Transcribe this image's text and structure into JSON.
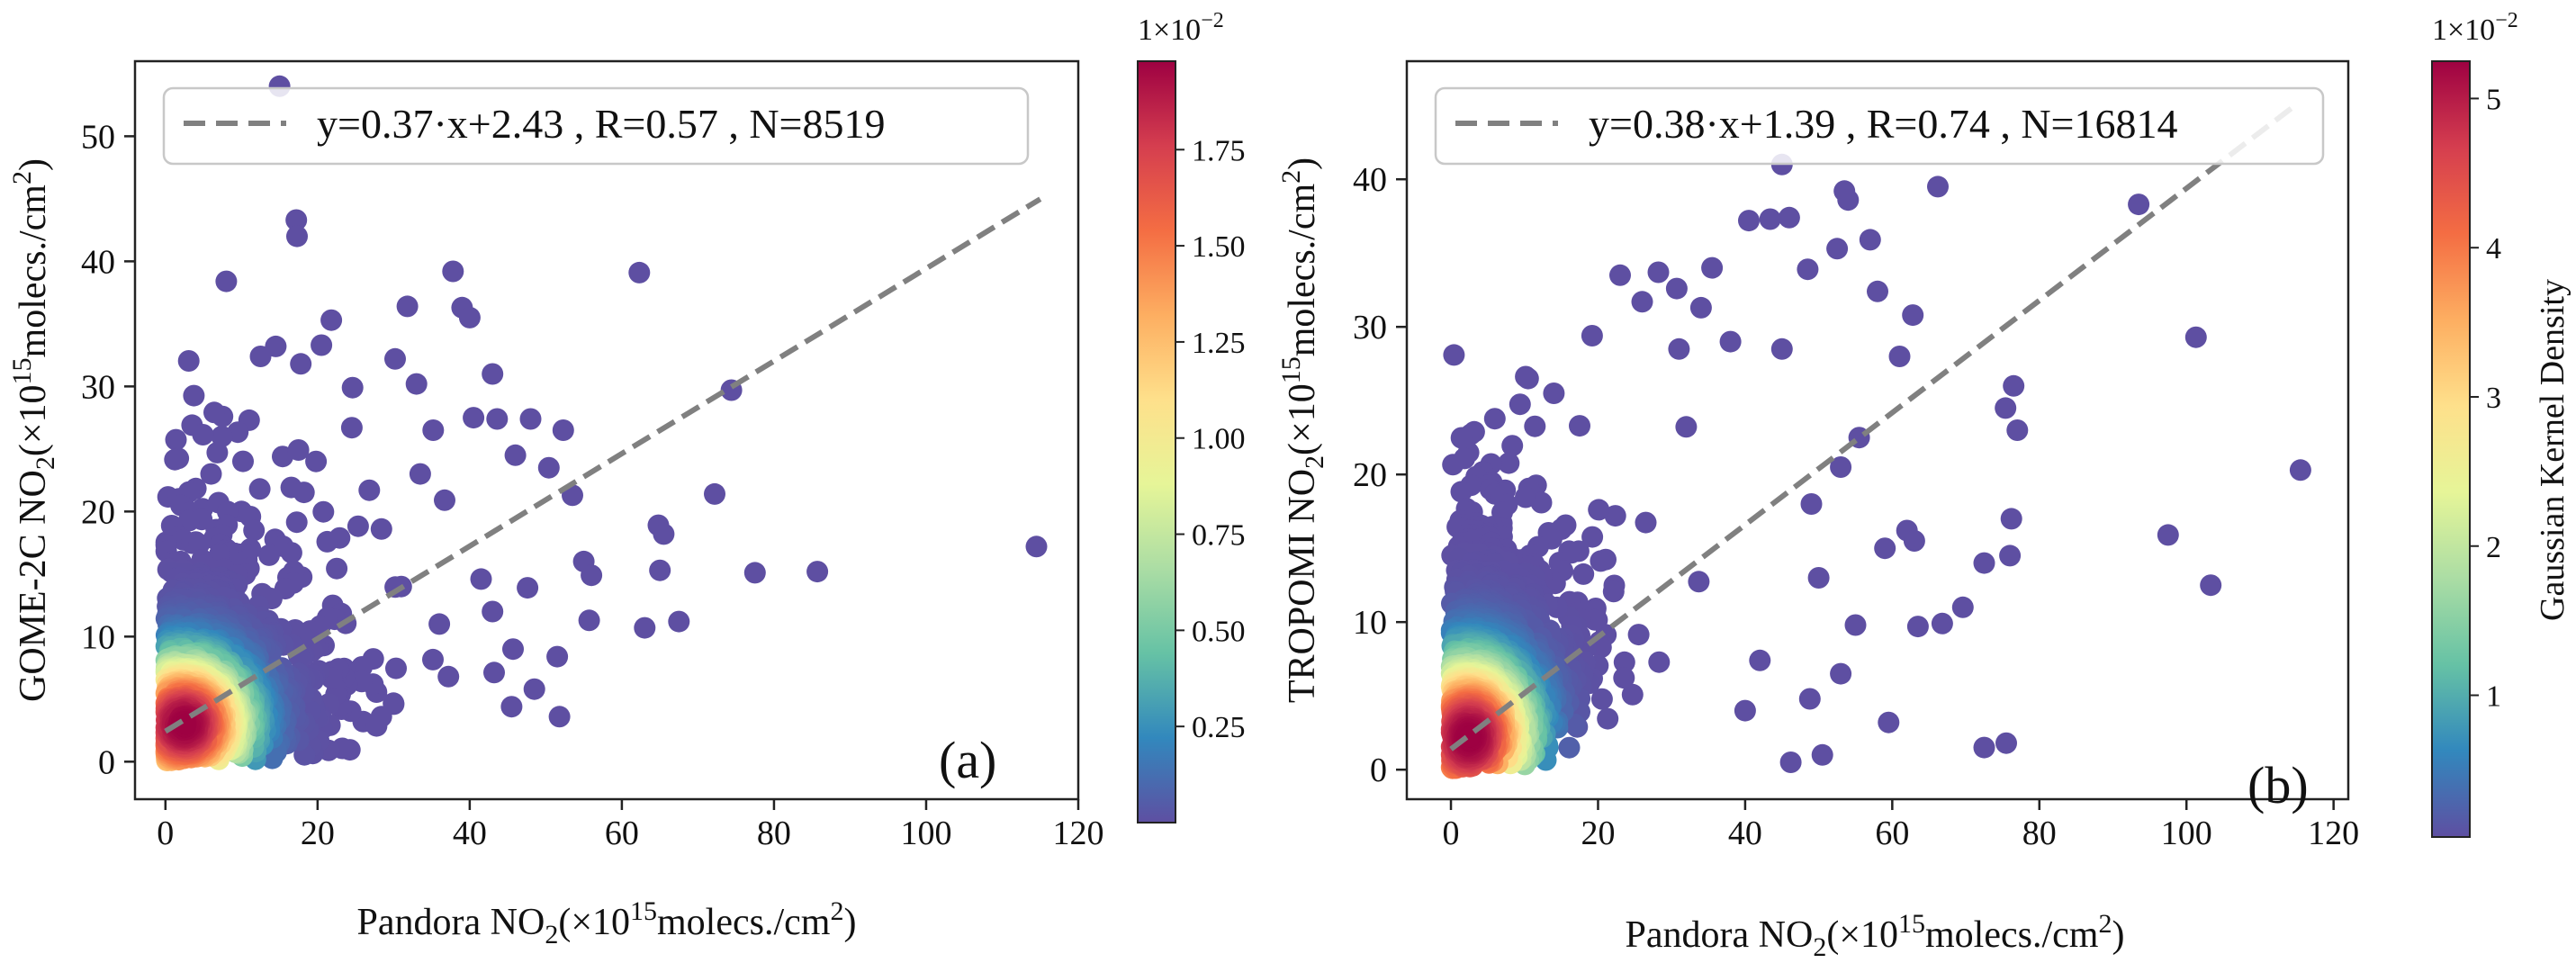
{
  "colors": {
    "fit_line": "#808080",
    "low_density": "#5e4fa2",
    "frame": "#222222",
    "background": "#ffffff"
  },
  "colorscale": [
    "#5e4fa2",
    "#3288bd",
    "#66c2a5",
    "#abdda4",
    "#e6f598",
    "#fee08b",
    "#fdae61",
    "#f46d43",
    "#d53e4f",
    "#9e0142"
  ],
  "chart_data": [
    {
      "id": "a",
      "type": "scatter",
      "panel_label": "(a)",
      "xlabel": {
        "pre": "Pandora NO",
        "sub": "2",
        "mid": "(×10",
        "sup": "15",
        "post": "molecs./cm",
        "sup2": "2",
        "end": ")"
      },
      "ylabel": {
        "pre": "GOME-2C NO",
        "sub": "2",
        "mid": "(×10",
        "sup": "15",
        "post": "molecs./cm",
        "sup2": "2",
        "end": ")"
      },
      "xlim": [
        -4,
        120
      ],
      "ylim": [
        -3,
        56
      ],
      "xticks": [
        "0",
        "20",
        "40",
        "60",
        "80",
        "100",
        "120"
      ],
      "xtick_values": [
        0,
        20,
        40,
        60,
        80,
        100,
        120
      ],
      "yticks": [
        "0",
        "10",
        "20",
        "30",
        "40",
        "50"
      ],
      "ytick_values": [
        0,
        10,
        20,
        30,
        40,
        50
      ],
      "fit": {
        "slope": 0.37,
        "intercept": 2.43,
        "x_range": [
          0,
          115
        ]
      },
      "legend_text": "y=0.37·x+2.43 , R=0.57 , N=8519",
      "density_peak": {
        "x": 2.5,
        "y": 3.0
      },
      "outliers": [
        [
          15,
          54
        ],
        [
          17.2,
          43.3
        ],
        [
          17.3,
          42
        ],
        [
          8,
          38.4
        ],
        [
          37.8,
          39.2
        ],
        [
          62.3,
          39.1
        ],
        [
          39,
          36.3
        ],
        [
          40,
          35.5
        ],
        [
          31.8,
          36.4
        ],
        [
          21.8,
          35.3
        ],
        [
          74.4,
          29.7
        ],
        [
          114.5,
          17.2
        ],
        [
          85.7,
          15.2
        ],
        [
          77.5,
          15.1
        ],
        [
          72.2,
          21.4
        ],
        [
          64.8,
          18.9
        ],
        [
          65.5,
          18.2
        ],
        [
          65,
          15.3
        ],
        [
          67.5,
          11.2
        ],
        [
          63,
          10.7
        ],
        [
          55,
          16
        ],
        [
          56,
          14.9
        ],
        [
          55.7,
          11.3
        ],
        [
          53.5,
          21.3
        ],
        [
          50.4,
          23.5
        ],
        [
          52.3,
          26.5
        ],
        [
          48,
          27.4
        ],
        [
          43.6,
          27.4
        ],
        [
          40.5,
          27.5
        ],
        [
          46,
          24.5
        ],
        [
          43,
          31
        ],
        [
          35.2,
          26.5
        ],
        [
          33,
          30.2
        ],
        [
          30.2,
          32.2
        ],
        [
          24.6,
          29.9
        ],
        [
          20.5,
          33.3
        ],
        [
          14.5,
          33.2
        ],
        [
          12.5,
          32.4
        ],
        [
          17.8,
          31.8
        ],
        [
          11,
          27.3
        ],
        [
          7.5,
          27.6
        ],
        [
          3.5,
          26.9
        ],
        [
          51.8,
          3.6
        ],
        [
          45.5,
          4.4
        ],
        [
          48.5,
          5.8
        ],
        [
          37.2,
          6.8
        ],
        [
          30,
          4.6
        ],
        [
          26,
          3.2
        ],
        [
          43,
          12
        ],
        [
          41.5,
          14.6
        ],
        [
          47.6,
          13.9
        ],
        [
          51.5,
          8.4
        ],
        [
          45.7,
          9
        ],
        [
          26.8,
          21.7
        ],
        [
          33.5,
          23
        ],
        [
          36.7,
          20.9
        ],
        [
          28.4,
          18.6
        ],
        [
          31,
          14
        ],
        [
          36,
          11
        ],
        [
          22,
          12.5
        ],
        [
          24.5,
          26.7
        ],
        [
          19.8,
          24
        ],
        [
          15.4,
          24.4
        ],
        [
          6,
          23
        ],
        [
          10,
          20
        ],
        [
          12.4,
          21.8
        ]
      ]
    },
    {
      "id": "b",
      "type": "scatter",
      "panel_label": "(b)",
      "xlabel": {
        "pre": "Pandora NO",
        "sub": "2",
        "mid": "(×10",
        "sup": "15",
        "post": "molecs./cm",
        "sup2": "2",
        "end": ")"
      },
      "ylabel": {
        "pre": "TROPOMI NO",
        "sub": "2",
        "mid": "(×10",
        "sup": "15",
        "post": "molecs./cm",
        "sup2": "2",
        "end": ")"
      },
      "xlim": [
        -6,
        122
      ],
      "ylim": [
        -2,
        48
      ],
      "xticks": [
        "0",
        "20",
        "40",
        "60",
        "80",
        "100",
        "120"
      ],
      "xtick_values": [
        0,
        20,
        40,
        60,
        80,
        100,
        120
      ],
      "yticks": [
        "0",
        "10",
        "20",
        "30",
        "40"
      ],
      "ytick_values": [
        0,
        10,
        20,
        30,
        40
      ],
      "fit": {
        "slope": 0.38,
        "intercept": 1.39,
        "x_range": [
          0,
          115
        ]
      },
      "legend_text": "y=0.38·x+1.39 , R=0.74 , N=16814",
      "density_peak": {
        "x": 2.5,
        "y": 2.2
      },
      "outliers": [
        [
          45,
          41
        ],
        [
          53.5,
          39.2
        ],
        [
          54,
          38.6
        ],
        [
          66.2,
          39.5
        ],
        [
          93.5,
          38.3
        ],
        [
          101.3,
          29.3
        ],
        [
          115.5,
          20.3
        ],
        [
          97.5,
          15.9
        ],
        [
          103.3,
          12.5
        ],
        [
          76.5,
          26
        ],
        [
          77,
          23
        ],
        [
          75.4,
          24.5
        ],
        [
          76.2,
          17
        ],
        [
          76,
          14.5
        ],
        [
          75.5,
          1.8
        ],
        [
          72.5,
          1.5
        ],
        [
          72.5,
          14
        ],
        [
          69.6,
          11
        ],
        [
          66.8,
          9.9
        ],
        [
          62,
          16.2
        ],
        [
          63,
          15.5
        ],
        [
          59,
          15
        ],
        [
          59.5,
          3.2
        ],
        [
          63.5,
          9.7
        ],
        [
          57,
          35.9
        ],
        [
          58,
          32.4
        ],
        [
          62.8,
          30.8
        ],
        [
          52.5,
          35.3
        ],
        [
          48.5,
          33.9
        ],
        [
          43.4,
          37.3
        ],
        [
          46,
          37.4
        ],
        [
          40.5,
          37.2
        ],
        [
          35.5,
          34
        ],
        [
          34,
          31.3
        ],
        [
          28.2,
          33.7
        ],
        [
          30.7,
          32.6
        ],
        [
          26,
          31.7
        ],
        [
          23,
          33.5
        ],
        [
          19.2,
          29.4
        ],
        [
          10.5,
          26.5
        ],
        [
          46.2,
          0.5
        ],
        [
          50.5,
          1
        ],
        [
          48.8,
          4.8
        ],
        [
          40,
          4
        ],
        [
          42,
          7.4
        ],
        [
          53,
          6.5
        ],
        [
          55,
          9.8
        ],
        [
          50,
          13
        ],
        [
          49,
          18
        ],
        [
          53,
          20.5
        ],
        [
          55.5,
          22.5
        ],
        [
          61,
          28
        ],
        [
          45,
          28.5
        ],
        [
          38,
          29
        ],
        [
          31,
          28.5
        ],
        [
          14,
          25.5
        ],
        [
          17.5,
          23.3
        ]
      ]
    }
  ],
  "colorbars": [
    {
      "exponent": "1×10",
      "exponent_power": "−2",
      "ticks": [
        "0.25",
        "0.50",
        "0.75",
        "1.00",
        "1.25",
        "1.50",
        "1.75"
      ],
      "tick_values": [
        0.25,
        0.5,
        0.75,
        1.0,
        1.25,
        1.5,
        1.75
      ],
      "range": [
        0.0,
        1.98
      ]
    },
    {
      "exponent": "1×10",
      "exponent_power": "−2",
      "ticks": [
        "1",
        "2",
        "3",
        "4",
        "5"
      ],
      "tick_values": [
        1,
        2,
        3,
        4,
        5
      ],
      "range": [
        0.05,
        5.25
      ],
      "label": "Gaussian Kernel Density"
    }
  ]
}
